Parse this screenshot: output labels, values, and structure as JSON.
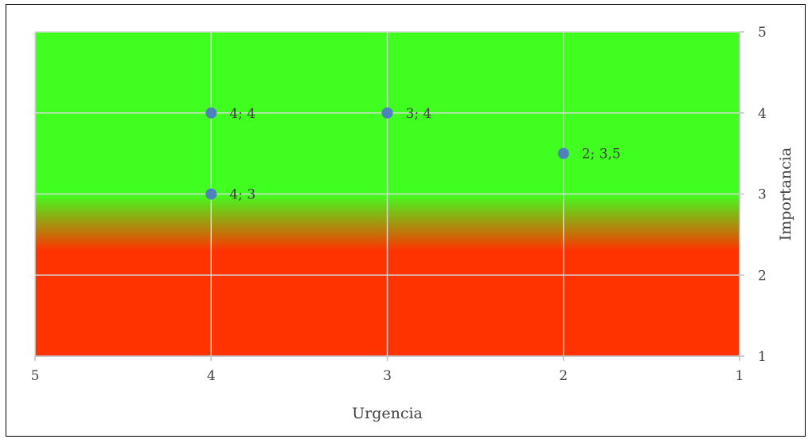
{
  "chart_data": {
    "type": "scatter",
    "title": "",
    "xlabel": "Urgencia",
    "ylabel": "Importancia",
    "xlim": [
      1,
      5
    ],
    "ylim": [
      1,
      5
    ],
    "x_reversed": true,
    "y_axis_position": "right",
    "grid": true,
    "x_ticks": [
      "5",
      "4",
      "3",
      "2",
      "1"
    ],
    "y_ticks": [
      "1",
      "2",
      "3",
      "4",
      "5"
    ],
    "background": {
      "high_color": "#40ff20",
      "low_color": "#ff3300",
      "green_until_y": 3,
      "red_from_y": 2.3
    },
    "point_color": "#4f81bd",
    "points": [
      {
        "x": 4,
        "y": 4,
        "label": "4; 4"
      },
      {
        "x": 3,
        "y": 4,
        "label": "3; 4"
      },
      {
        "x": 2,
        "y": 3.5,
        "label": "2; 3,5"
      },
      {
        "x": 4,
        "y": 3,
        "label": "4; 3"
      }
    ]
  }
}
